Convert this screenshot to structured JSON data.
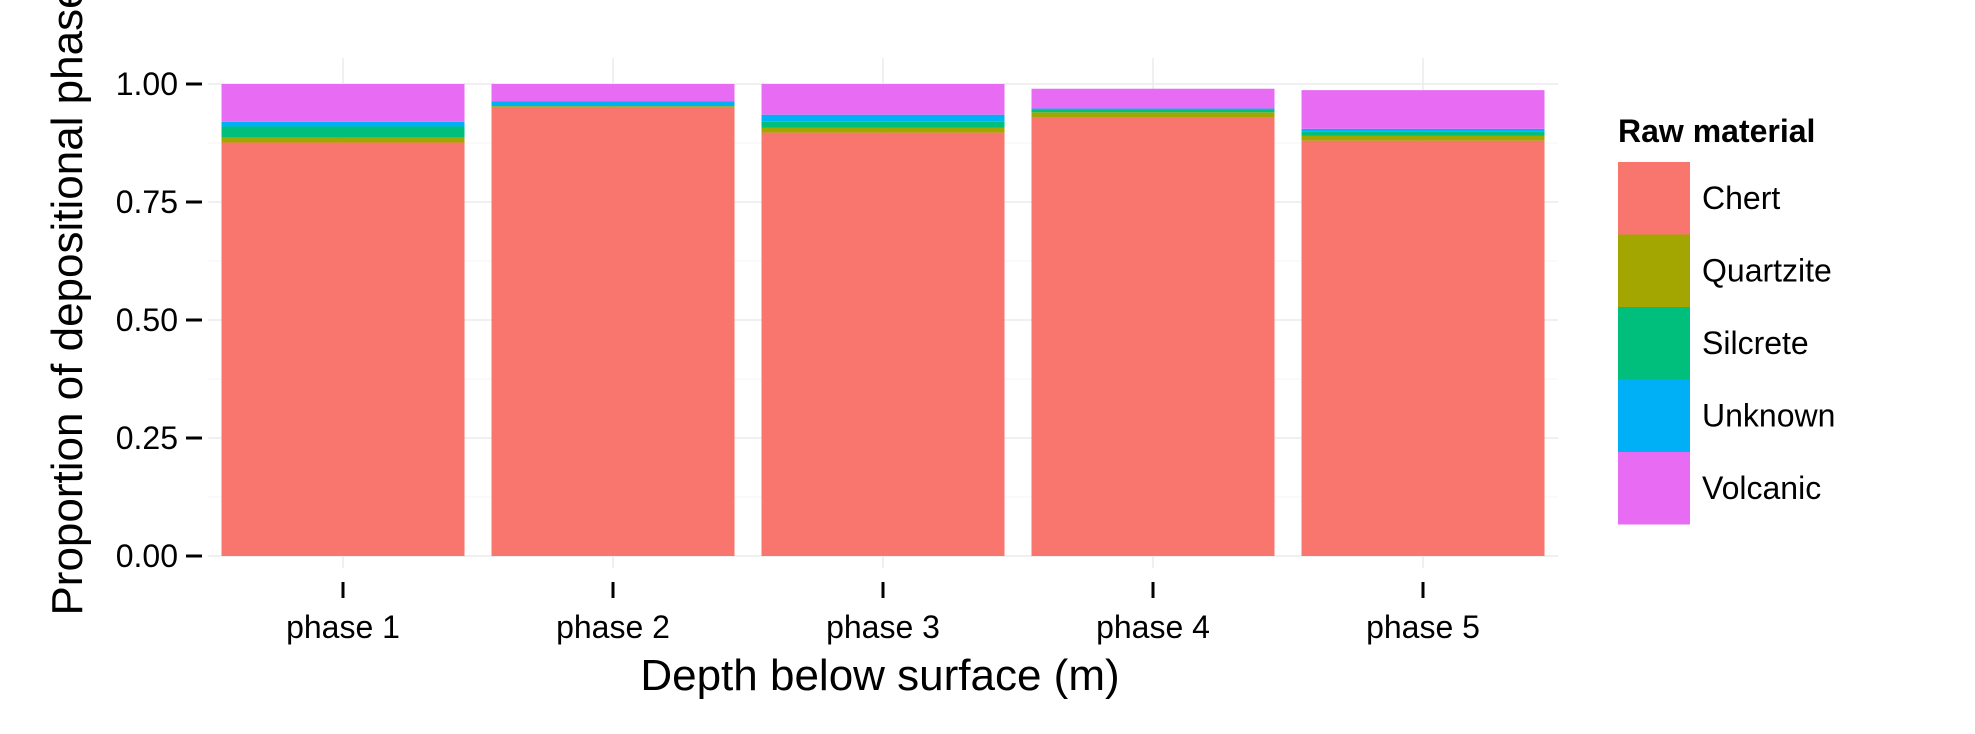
{
  "chart_data": {
    "type": "bar",
    "stacked": true,
    "categories": [
      "phase 1",
      "phase 2",
      "phase 3",
      "phase 4",
      "phase 5"
    ],
    "xlabel": "Depth below surface (m)",
    "ylabel": "Proportion of depositional phase",
    "ylim": [
      0,
      1.0
    ],
    "yticks": [
      "0.00",
      "0.25",
      "0.50",
      "0.75",
      "1.00"
    ],
    "ytick_values": [
      0,
      0.25,
      0.5,
      0.75,
      1.0
    ],
    "grid": true,
    "legend": {
      "title": "Raw material",
      "position": "right"
    },
    "series": [
      {
        "name": "Chert",
        "color": "#F8766D",
        "values": [
          0.876,
          0.95,
          0.897,
          0.93,
          0.88
        ]
      },
      {
        "name": "Quartzite",
        "color": "#A3A500",
        "values": [
          0.01,
          0.003,
          0.01,
          0.01,
          0.01
        ]
      },
      {
        "name": "Silcrete",
        "color": "#00BF7D",
        "values": [
          0.024,
          0.0,
          0.013,
          0.005,
          0.01
        ]
      },
      {
        "name": "Unknown",
        "color": "#00B0F6",
        "values": [
          0.01,
          0.01,
          0.015,
          0.003,
          0.005
        ]
      },
      {
        "name": "Volcanic",
        "color": "#E76BF3",
        "values": [
          0.08,
          0.037,
          0.065,
          0.042,
          0.082
        ]
      }
    ]
  }
}
